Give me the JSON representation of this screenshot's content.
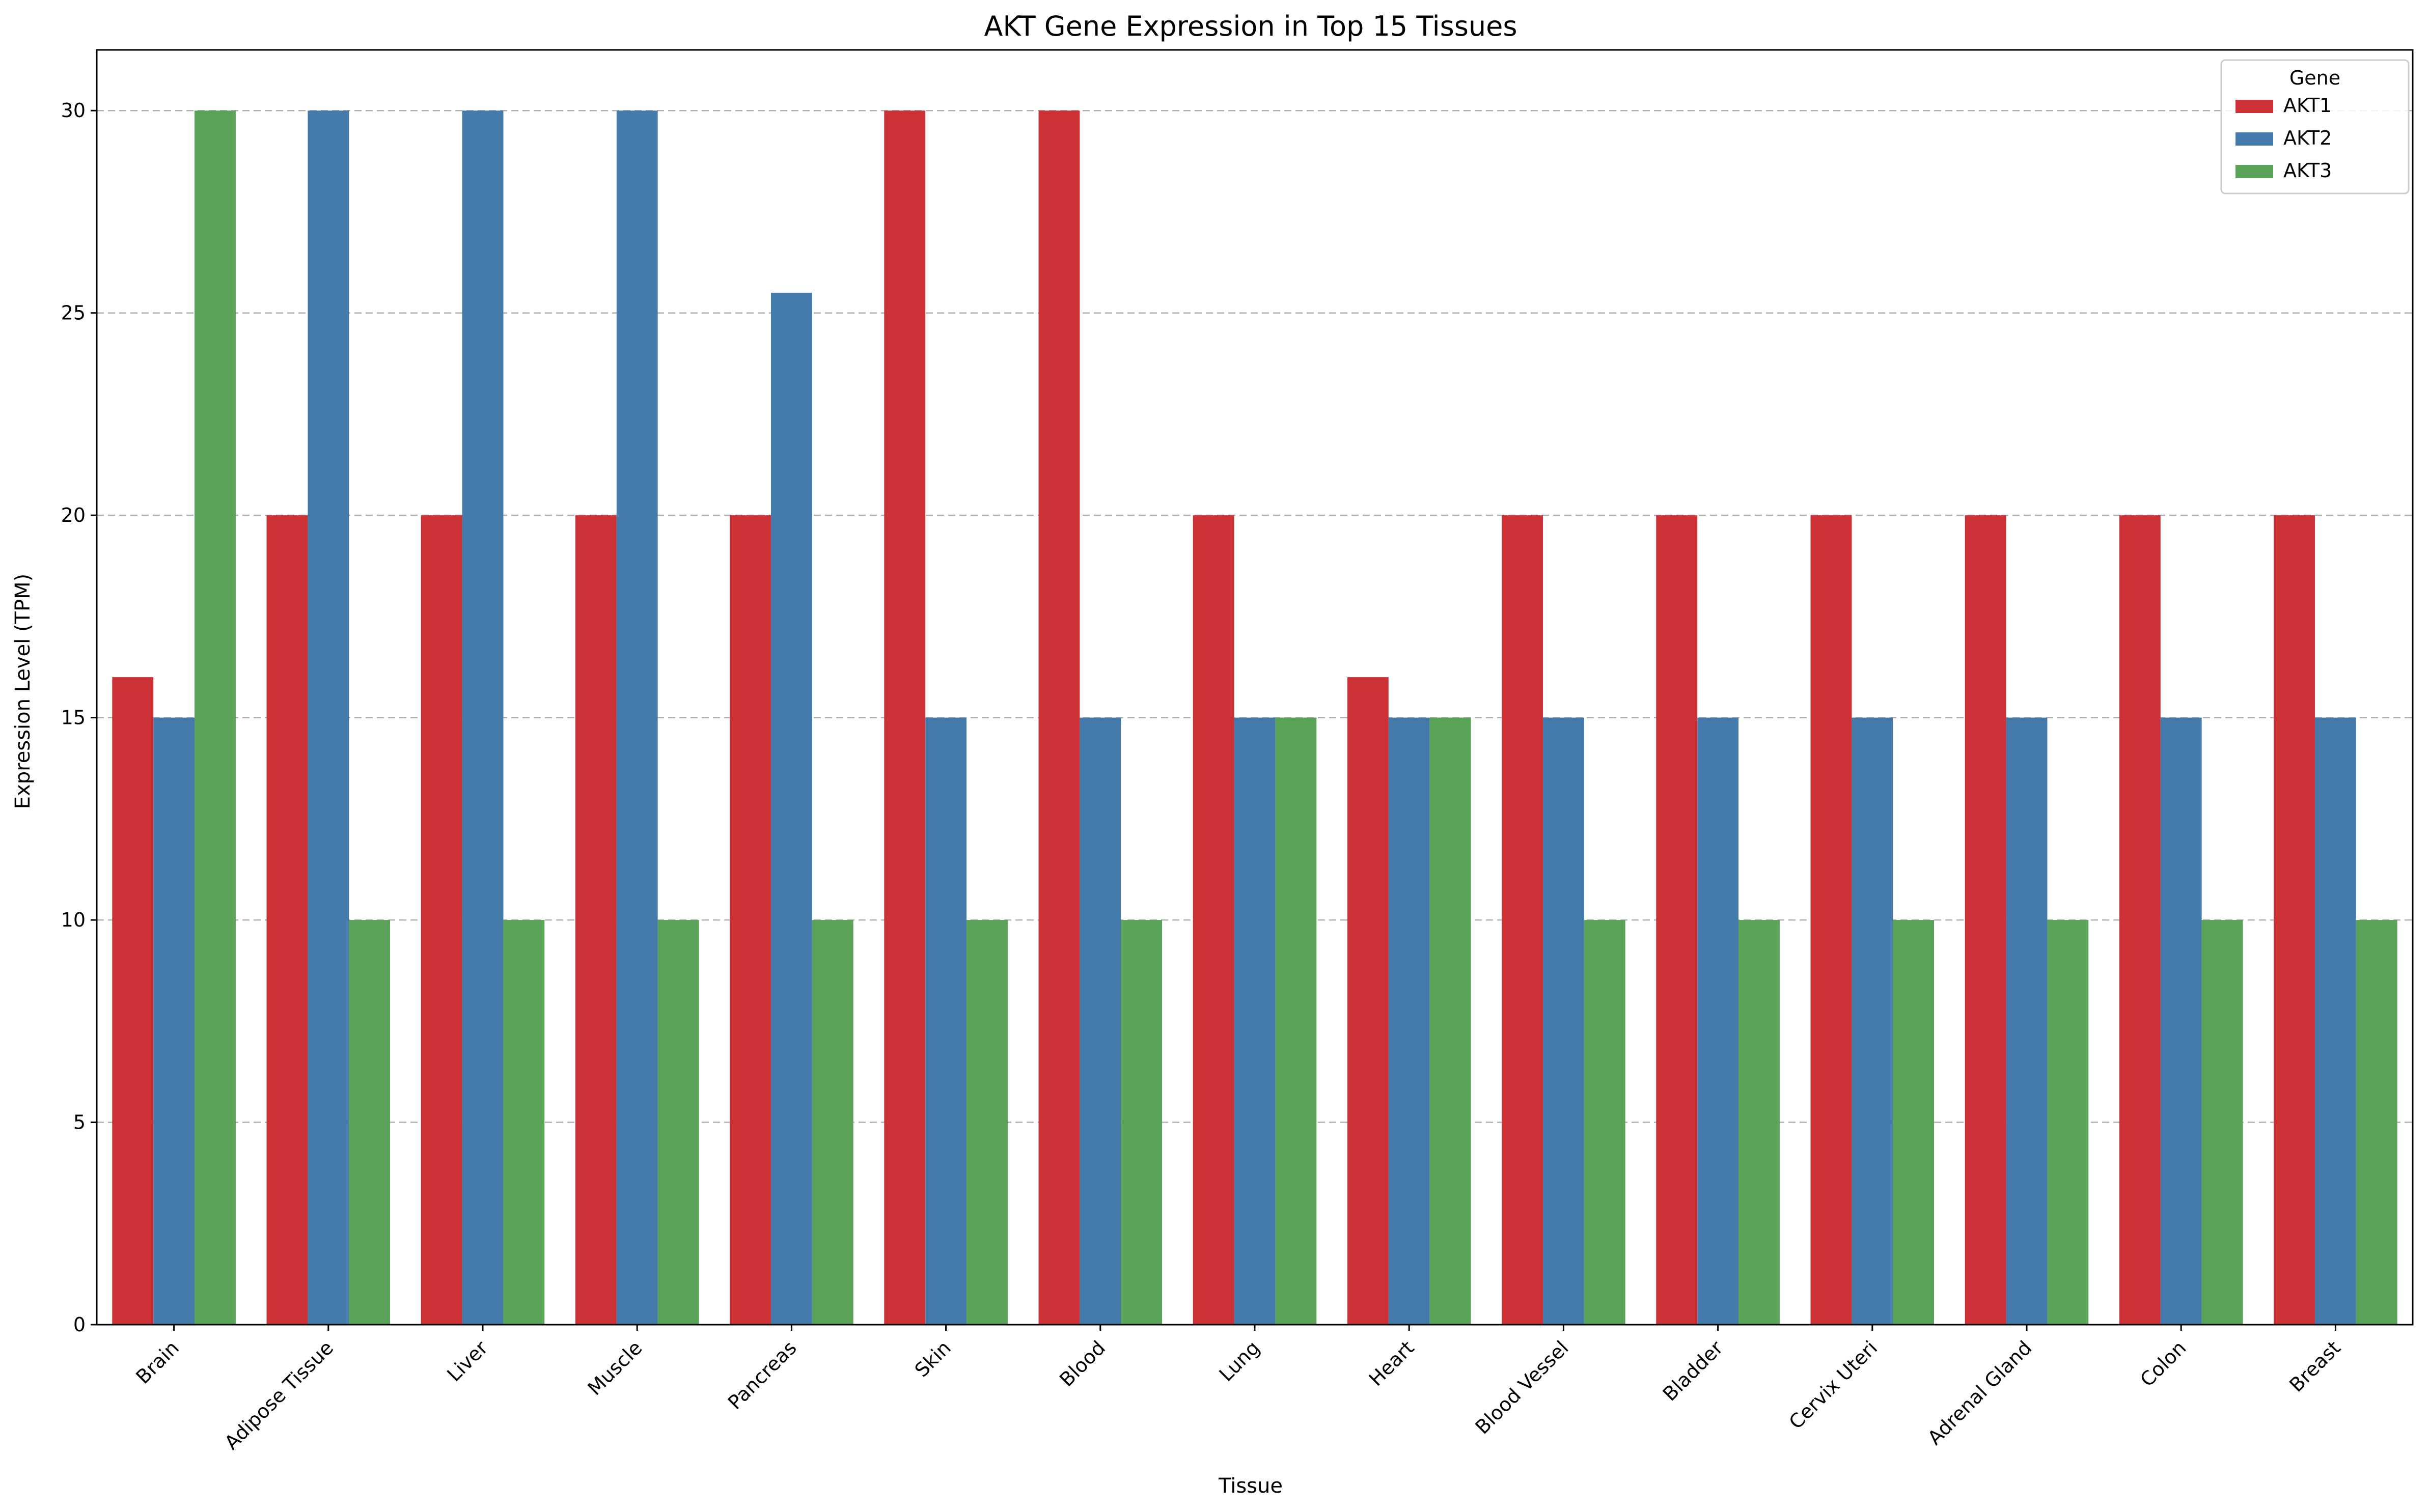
{
  "chart_data": {
    "type": "bar",
    "title": "AKT Gene Expression in Top 15 Tissues",
    "xlabel": "Tissue",
    "ylabel": "Expression Level (TPM)",
    "categories": [
      "Brain",
      "Adipose Tissue",
      "Liver",
      "Muscle",
      "Pancreas",
      "Skin",
      "Blood",
      "Lung",
      "Heart",
      "Blood Vessel",
      "Bladder",
      "Cervix Uteri",
      "Adrenal Gland",
      "Colon",
      "Breast"
    ],
    "series": [
      {
        "name": "AKT1",
        "color": "#cc3135",
        "values": [
          16,
          20,
          20,
          20,
          20,
          30,
          30,
          20,
          16,
          20,
          20,
          20,
          20,
          20,
          20
        ]
      },
      {
        "name": "AKT2",
        "color": "#447bab",
        "values": [
          15,
          30,
          30,
          30,
          25.5,
          15,
          15,
          15,
          15,
          15,
          15,
          15,
          15,
          15,
          15
        ]
      },
      {
        "name": "AKT3",
        "color": "#5aa257",
        "values": [
          30,
          10,
          10,
          10,
          10,
          10,
          10,
          15,
          15,
          10,
          10,
          10,
          10,
          10,
          10
        ]
      }
    ],
    "ylim": [
      0,
      31.5
    ],
    "yticks": [
      0,
      5,
      10,
      15,
      20,
      25,
      30
    ],
    "grid": "y-dashed",
    "legend": {
      "title": "Gene",
      "placement": "top-right"
    }
  }
}
